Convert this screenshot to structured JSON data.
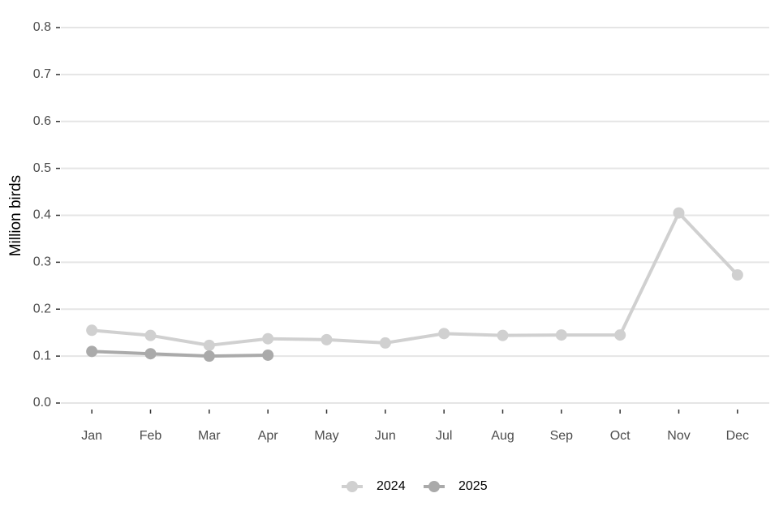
{
  "chart_data": {
    "type": "line",
    "y_label": "Million birds",
    "categories": [
      "Jan",
      "Feb",
      "Mar",
      "Apr",
      "May",
      "Jun",
      "Jul",
      "Aug",
      "Sep",
      "Oct",
      "Nov",
      "Dec"
    ],
    "series": [
      {
        "name": "2024",
        "color": "#d0d0d0",
        "values": [
          0.155,
          0.144,
          0.123,
          0.137,
          0.135,
          0.128,
          0.148,
          0.144,
          0.145,
          0.145,
          0.405,
          0.273
        ]
      },
      {
        "name": "2025",
        "color": "#aaaaaa",
        "values": [
          0.11,
          0.105,
          0.1,
          0.102,
          null,
          null,
          null,
          null,
          null,
          null,
          null,
          null
        ]
      }
    ],
    "ylim": [
      0,
      0.8
    ],
    "yticks": [
      {
        "value": 0,
        "label": "0.0"
      },
      0.1,
      0.2,
      0.3,
      0.4,
      0.5,
      0.6,
      0.7,
      0.8
    ],
    "grid": true,
    "legend": "bottom"
  }
}
